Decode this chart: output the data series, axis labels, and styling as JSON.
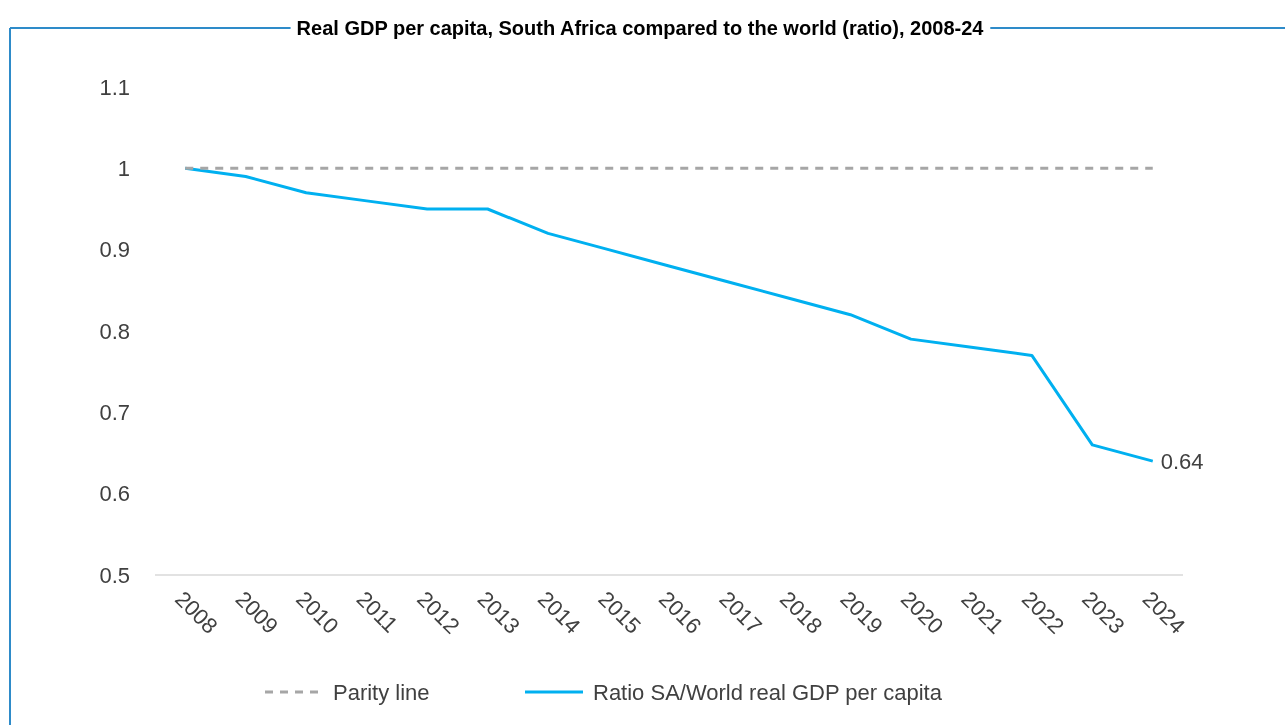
{
  "chart_data": {
    "type": "line",
    "title": "Real GDP per capita, South Africa compared to the world (ratio), 2008-24",
    "categories": [
      "2008",
      "2009",
      "2010",
      "2011",
      "2012",
      "2013",
      "2014",
      "2015",
      "2016",
      "2017",
      "2018",
      "2019",
      "2020",
      "2021",
      "2022",
      "2023",
      "2024"
    ],
    "series": [
      {
        "name": "Parity line",
        "color": "#a6a6a6",
        "line_style": "dashed",
        "values": [
          1,
          1,
          1,
          1,
          1,
          1,
          1,
          1,
          1,
          1,
          1,
          1,
          1,
          1,
          1,
          1,
          1
        ]
      },
      {
        "name": "Ratio SA/World real GDP per capita",
        "color": "#00b0f0",
        "line_style": "solid",
        "values": [
          1.0,
          0.99,
          0.97,
          0.96,
          0.95,
          0.95,
          0.92,
          0.9,
          0.88,
          0.86,
          0.84,
          0.82,
          0.79,
          0.78,
          0.77,
          0.66,
          0.64
        ],
        "value_labels": [
          null,
          null,
          null,
          null,
          null,
          null,
          null,
          null,
          null,
          null,
          null,
          null,
          null,
          null,
          null,
          null,
          "0.64"
        ]
      }
    ],
    "ylim": [
      0.5,
      1.1
    ],
    "yticks": [
      0.5,
      0.6,
      0.7,
      0.8,
      0.9,
      1,
      1.1
    ],
    "grid": false,
    "legend": "bottom",
    "marker": "none"
  }
}
